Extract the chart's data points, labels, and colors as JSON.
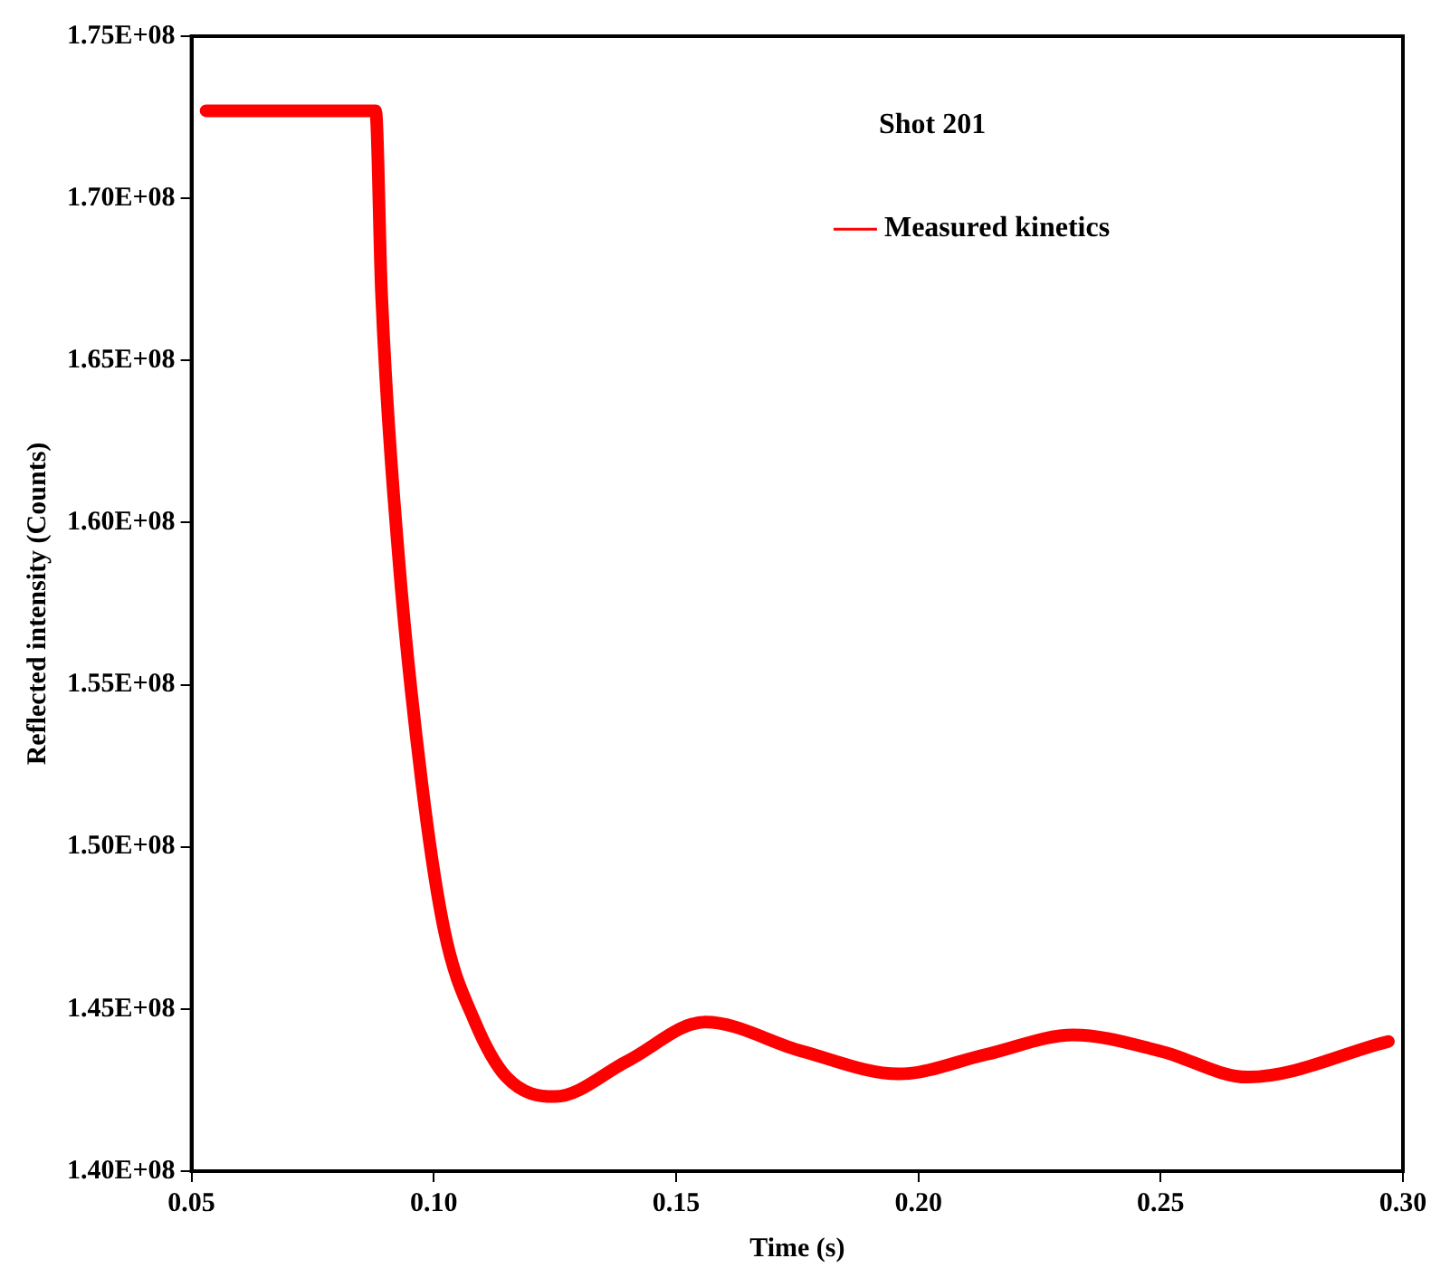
{
  "chart_data": {
    "type": "line",
    "xlabel": "Time (s)",
    "ylabel": "Reflected intensity (Counts)",
    "annotations": [
      "Shot 201"
    ],
    "x": [
      0.053,
      0.088,
      0.0892,
      0.0927,
      0.0975,
      0.1022,
      0.1085,
      0.115,
      0.125,
      0.14,
      0.156,
      0.176,
      0.196,
      0.214,
      0.232,
      0.25,
      0.268,
      0.297
    ],
    "series": [
      {
        "name": "Measured kinetics",
        "color": "#ff0000",
        "values": [
          172700000,
          172700000,
          167100000,
          159000000,
          152000000,
          147400000,
          144600000,
          142900000,
          142300000,
          143400000,
          144600000,
          143700000,
          143000000,
          143600000,
          144200000,
          143700000,
          142900000,
          144000000
        ]
      }
    ],
    "xlim": [
      0.05,
      0.3
    ],
    "xticks": [
      0.05,
      {
        "value": 0.1,
        "label": "0.10"
      },
      0.15,
      {
        "value": 0.2,
        "label": "0.20"
      },
      0.25,
      {
        "value": 0.3,
        "label": "0.30"
      }
    ],
    "ylim": [
      140000000,
      175000000
    ],
    "yticks": [
      {
        "value": 140000000,
        "label": "1.40E+08"
      },
      {
        "value": 145000000,
        "label": "1.45E+08"
      },
      {
        "value": 150000000,
        "label": "1.50E+08"
      },
      {
        "value": 155000000,
        "label": "1.55E+08"
      },
      {
        "value": 160000000,
        "label": "1.60E+08"
      },
      {
        "value": 165000000,
        "label": "1.65E+08"
      },
      {
        "value": 170000000,
        "label": "1.70E+08"
      },
      {
        "value": 175000000,
        "label": "1.75E+08"
      }
    ],
    "grid": false,
    "legend": "top right",
    "marker": "none",
    "line_style": "solid"
  }
}
